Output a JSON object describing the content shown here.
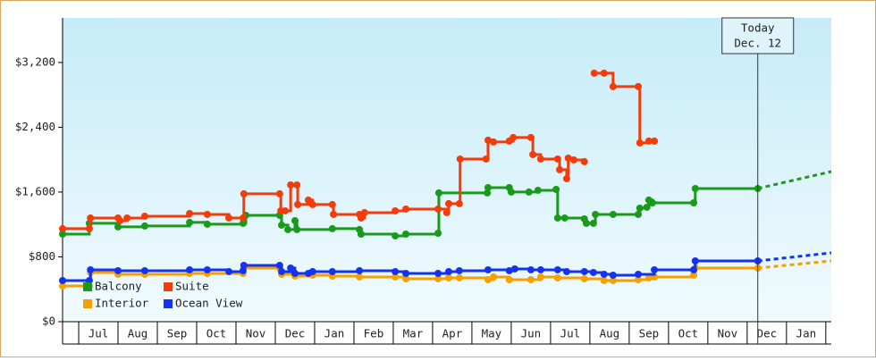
{
  "chart_data": {
    "type": "step",
    "xlim": [
      -0.41,
      19.14
    ],
    "xticks": [
      {
        "value": 0.5,
        "label": "Jul"
      },
      {
        "value": 1.5,
        "label": "Aug"
      },
      {
        "value": 2.5,
        "label": "Sep"
      },
      {
        "value": 3.5,
        "label": "Oct"
      },
      {
        "value": 4.5,
        "label": "Nov"
      },
      {
        "value": 5.5,
        "label": "Dec"
      },
      {
        "value": 6.5,
        "label": "Jan"
      },
      {
        "value": 7.5,
        "label": "Feb"
      },
      {
        "value": 8.5,
        "label": "Mar"
      },
      {
        "value": 9.5,
        "label": "Apr"
      },
      {
        "value": 10.5,
        "label": "May"
      },
      {
        "value": 11.5,
        "label": "Jun"
      },
      {
        "value": 12.5,
        "label": "Jul"
      },
      {
        "value": 13.5,
        "label": "Aug"
      },
      {
        "value": 14.5,
        "label": "Sep"
      },
      {
        "value": 15.5,
        "label": "Oct"
      },
      {
        "value": 16.5,
        "label": "Nov"
      },
      {
        "value": 17.5,
        "label": "Dec"
      },
      {
        "value": 18.5,
        "label": "Jan"
      }
    ],
    "ylim": [
      0,
      3750
    ],
    "yticks": [
      {
        "value": 0,
        "label": "$0"
      },
      {
        "value": 800,
        "label": "$800"
      },
      {
        "value": 1600,
        "label": "$1,600"
      },
      {
        "value": 2400,
        "label": "$2,400"
      },
      {
        "value": 3200,
        "label": "$3,200"
      }
    ],
    "legend": "lower left",
    "annotation": {
      "x": 17.27,
      "lines": [
        "Today",
        "Dec. 12"
      ]
    },
    "series": [
      {
        "name": "Balcony",
        "color": "#1a9a1a",
        "x": [
          -0.41,
          0.27,
          1.0,
          1.68,
          2.82,
          3.27,
          4.18,
          4.25,
          5.11,
          5.16,
          5.32,
          5.5,
          5.55,
          6.45,
          7.14,
          7.18,
          8.05,
          8.32,
          9.14,
          9.16,
          10.39,
          10.41,
          10.95,
          11.0,
          11.45,
          11.68,
          12.14,
          12.18,
          12.36,
          12.86,
          12.91,
          13.09,
          13.14,
          13.59,
          14.23,
          14.27,
          14.45,
          14.5,
          14.59,
          15.64,
          15.68,
          17.27
        ],
        "values": [
          1081,
          1214,
          1170,
          1181,
          1225,
          1203,
          1214,
          1313,
          1313,
          1192,
          1137,
          1247,
          1137,
          1148,
          1137,
          1081,
          1059,
          1081,
          1092,
          1589,
          1589,
          1655,
          1655,
          1600,
          1600,
          1622,
          1633,
          1280,
          1280,
          1269,
          1214,
          1214,
          1324,
          1324,
          1324,
          1401,
          1412,
          1501,
          1467,
          1467,
          1644,
          1644
        ],
        "forecast": {
          "x": [
            17.27,
            19.14
          ],
          "values": [
            1644,
            1853
          ]
        }
      },
      {
        "name": "Suite",
        "color": "#f23c0c",
        "x": [
          -0.41,
          0.27,
          0.3,
          1.0,
          1.05,
          1.23,
          1.68,
          2.82,
          3.27,
          3.82,
          4.18,
          4.2,
          5.11,
          5.14,
          5.25,
          5.39,
          5.55,
          5.57,
          5.84,
          5.95,
          6.45,
          6.48,
          7.14,
          7.18,
          7.27,
          8.05,
          8.32,
          9.14,
          9.36,
          9.41,
          9.68,
          9.7,
          10.36,
          10.41,
          10.55,
          10.95,
          11.05,
          11.5,
          11.55,
          11.75,
          12.18,
          12.23,
          12.41,
          12.45,
          12.59,
          12.86,
          13.0,
          13.11,
          13.36,
          13.59,
          14.23,
          14.27,
          14.5,
          14.64
        ],
        "values": [
          1148,
          1148,
          1280,
          1280,
          1247,
          1280,
          1302,
          1335,
          1324,
          1280,
          1280,
          1578,
          1578,
          1368,
          1368,
          1688,
          1688,
          1446,
          1501,
          1446,
          1446,
          1324,
          1324,
          1280,
          1346,
          1368,
          1390,
          1390,
          1346,
          1457,
          1457,
          2008,
          2008,
          2240,
          2218,
          2229,
          2273,
          2273,
          2063,
          2008,
          2008,
          1876,
          1765,
          2019,
          1997,
          1975,
          null,
          3067,
          3067,
          2902,
          2902,
          2207,
          2229,
          2229
        ]
      },
      {
        "name": "Interior",
        "color": "#f5a000",
        "x": [
          -0.41,
          0.27,
          0.3,
          1.0,
          1.68,
          2.82,
          3.27,
          4.18,
          4.2,
          5.11,
          5.16,
          5.5,
          5.95,
          6.45,
          7.14,
          8.05,
          8.32,
          9.14,
          9.41,
          9.68,
          10.41,
          10.55,
          10.95,
          11.5,
          11.75,
          12.18,
          12.86,
          13.36,
          13.59,
          14.23,
          14.5,
          14.64,
          15.64,
          15.68,
          17.27
        ],
        "values": [
          441,
          441,
          607,
          585,
          585,
          596,
          596,
          596,
          662,
          662,
          585,
          563,
          574,
          563,
          552,
          552,
          530,
          530,
          541,
          541,
          519,
          552,
          519,
          519,
          552,
          541,
          530,
          508,
          508,
          519,
          541,
          552,
          574,
          662,
          662
        ],
        "forecast": {
          "x": [
            17.27,
            19.14
          ],
          "values": [
            662,
            750
          ]
        }
      },
      {
        "name": "Ocean View",
        "color": "#1533ee",
        "x": [
          -0.41,
          0.27,
          0.3,
          1.0,
          1.68,
          2.82,
          3.27,
          3.82,
          4.18,
          4.2,
          5.11,
          5.16,
          5.39,
          5.5,
          5.84,
          5.95,
          6.45,
          7.14,
          8.05,
          8.32,
          9.14,
          9.41,
          9.68,
          10.41,
          10.95,
          11.09,
          11.5,
          11.75,
          12.18,
          12.41,
          12.86,
          13.09,
          13.36,
          13.59,
          14.23,
          14.64,
          15.64,
          15.68,
          17.27
        ],
        "values": [
          508,
          508,
          640,
          629,
          629,
          640,
          640,
          618,
          629,
          695,
          695,
          618,
          662,
          596,
          596,
          618,
          618,
          629,
          618,
          596,
          596,
          618,
          629,
          640,
          629,
          651,
          640,
          640,
          640,
          618,
          618,
          607,
          585,
          574,
          585,
          640,
          640,
          750,
          750
        ],
        "forecast": {
          "x": [
            17.27,
            19.14
          ],
          "values": [
            750,
            850
          ]
        }
      }
    ]
  }
}
